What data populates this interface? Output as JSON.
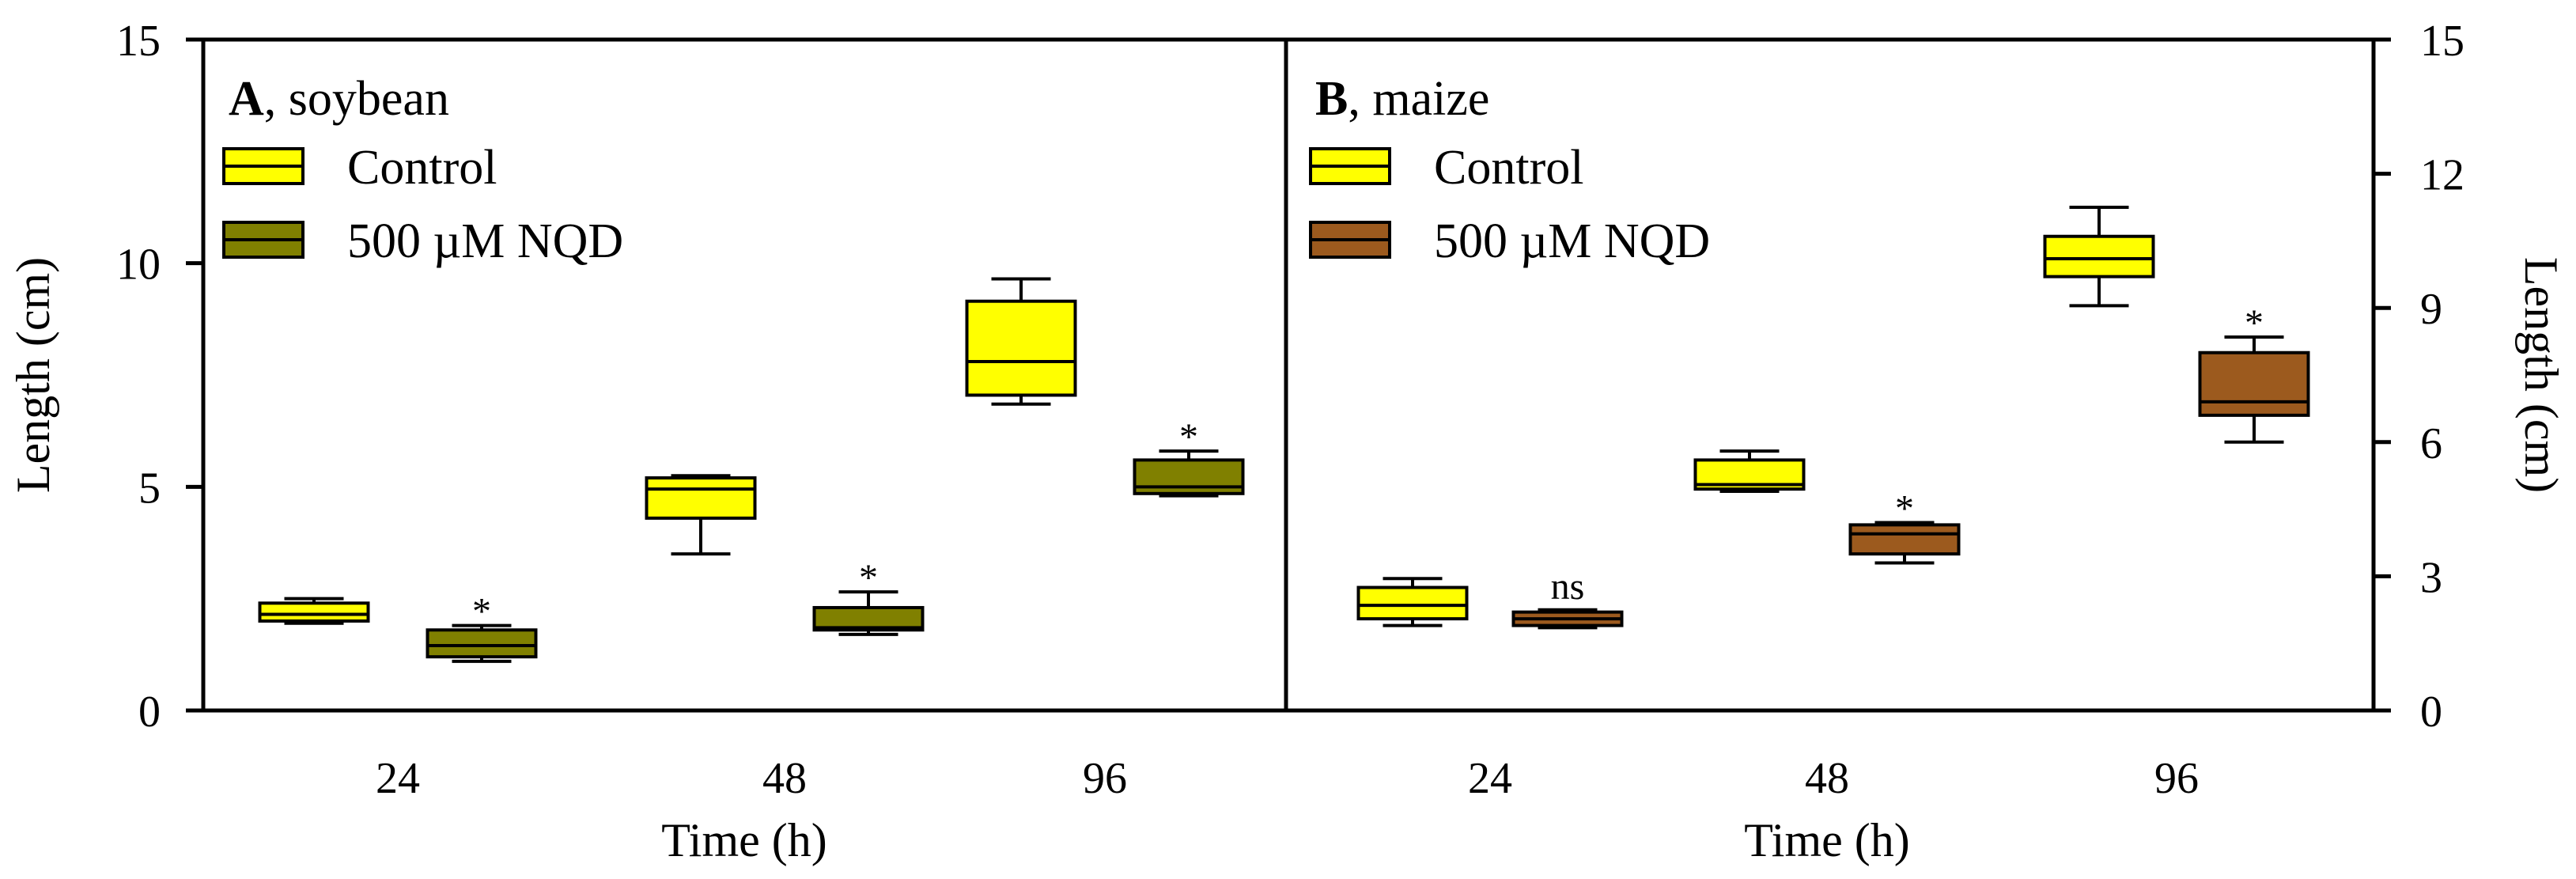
{
  "chart_data": [
    {
      "type": "box",
      "panel_letter": "A",
      "panel_text": ", soybean",
      "xlabel": "Time (h)",
      "ylabel": "Length (cm)",
      "ylim": [
        0,
        15
      ],
      "yticks": [
        0,
        5,
        10,
        15
      ],
      "ytick_labels": [
        "0",
        "5",
        "10",
        "15"
      ],
      "y_axis_side": "left",
      "categories": [
        "24",
        "48",
        "96"
      ],
      "legend_position": "top-left",
      "series": [
        {
          "name": "Control",
          "color": "#FFFF00",
          "boxes": [
            {
              "min": 1.95,
              "q1": 2.0,
              "median": 2.15,
              "q3": 2.4,
              "max": 2.5
            },
            {
              "min": 3.5,
              "q1": 4.3,
              "median": 4.95,
              "q3": 5.2,
              "max": 5.25
            },
            {
              "min": 6.85,
              "q1": 7.05,
              "median": 7.8,
              "q3": 9.15,
              "max": 9.65
            }
          ]
        },
        {
          "name": "500 µM NQD",
          "color": "#808000",
          "boxes": [
            {
              "min": 1.1,
              "q1": 1.2,
              "median": 1.45,
              "q3": 1.8,
              "max": 1.9
            },
            {
              "min": 1.7,
              "q1": 1.8,
              "median": 1.85,
              "q3": 2.3,
              "max": 2.65
            },
            {
              "min": 4.8,
              "q1": 4.85,
              "median": 5.0,
              "q3": 5.6,
              "max": 5.8
            }
          ],
          "significance": [
            "*",
            "*",
            "*"
          ]
        }
      ]
    },
    {
      "type": "box",
      "panel_letter": "B",
      "panel_text": ", maize",
      "xlabel": "Time (h)",
      "ylabel": "Length (cm)",
      "ylim": [
        0,
        15
      ],
      "yticks": [
        0,
        3,
        6,
        9,
        12,
        15
      ],
      "ytick_labels": [
        "0",
        "3",
        "6",
        "9",
        "12",
        "15"
      ],
      "y_axis_side": "right",
      "categories": [
        "24",
        "48",
        "96"
      ],
      "legend_position": "top-left",
      "series": [
        {
          "name": "Control",
          "color": "#FFFF00",
          "boxes": [
            {
              "min": 1.9,
              "q1": 2.05,
              "median": 2.35,
              "q3": 2.75,
              "max": 2.95
            },
            {
              "min": 4.9,
              "q1": 4.95,
              "median": 5.05,
              "q3": 5.6,
              "max": 5.8
            },
            {
              "min": 9.05,
              "q1": 9.7,
              "median": 10.1,
              "q3": 10.6,
              "max": 11.25
            }
          ]
        },
        {
          "name": "500 µM NQD",
          "color": "#9C5A1E",
          "boxes": [
            {
              "min": 1.85,
              "q1": 1.9,
              "median": 2.05,
              "q3": 2.2,
              "max": 2.25
            },
            {
              "min": 3.3,
              "q1": 3.5,
              "median": 3.95,
              "q3": 4.15,
              "max": 4.2
            },
            {
              "min": 6.0,
              "q1": 6.6,
              "median": 6.9,
              "q3": 8.0,
              "max": 8.35
            }
          ],
          "significance": [
            "ns",
            "*",
            "*"
          ]
        }
      ]
    }
  ]
}
